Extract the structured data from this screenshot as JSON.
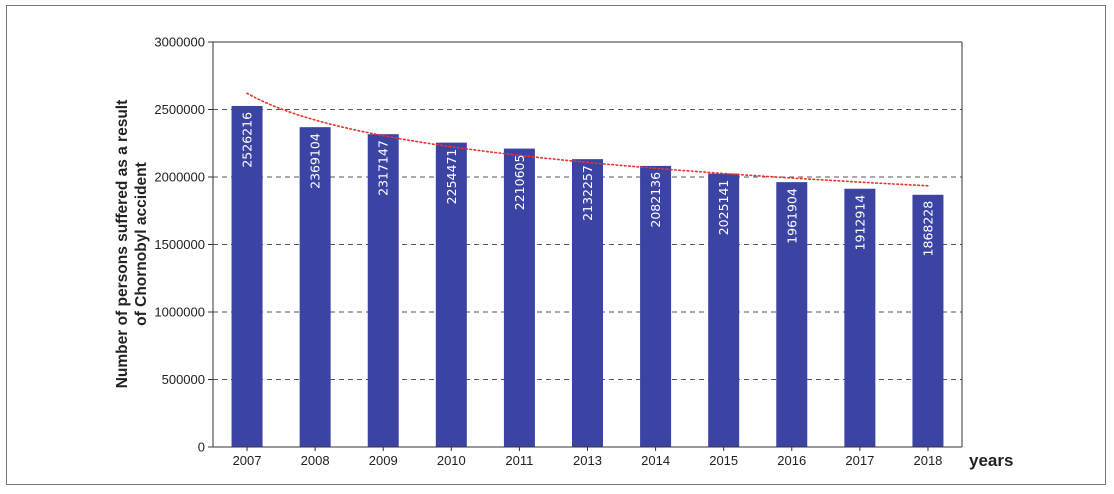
{
  "chart_data": {
    "type": "bar",
    "title": "",
    "xlabel": "years",
    "ylabel": [
      "Number of persons suffered as a result",
      "of Chornobyl accident"
    ],
    "categories": [
      "2007",
      "2008",
      "2009",
      "2010",
      "2011",
      "2013",
      "2014",
      "2015",
      "2016",
      "2017",
      "2018"
    ],
    "values": [
      2526216,
      2369104,
      2317147,
      2254471,
      2210605,
      2132257,
      2082136,
      2025141,
      1961904,
      1912914,
      1868228
    ],
    "data_labels": [
      "2526216",
      "2369104",
      "2317147",
      "2254471",
      "2210605",
      "2132257",
      "2082136",
      "2025141",
      "1961904",
      "1912914",
      "1868228"
    ],
    "ylim": [
      0,
      3000000
    ],
    "yticks": [
      0,
      500000,
      1000000,
      1500000,
      2000000,
      2500000,
      3000000
    ],
    "ytick_labels": [
      "0",
      "500000",
      "1000000",
      "1500000",
      "2000000",
      "2500000",
      "3000000"
    ],
    "grid": "horizontal dashed",
    "trendline": {
      "type": "logarithmic",
      "start_value": 2620000,
      "end_value": 1935000
    },
    "colors": {
      "bar": "#3b44a3",
      "trend": "#e8322a",
      "grid": "#555555",
      "axis": "#333333"
    }
  }
}
